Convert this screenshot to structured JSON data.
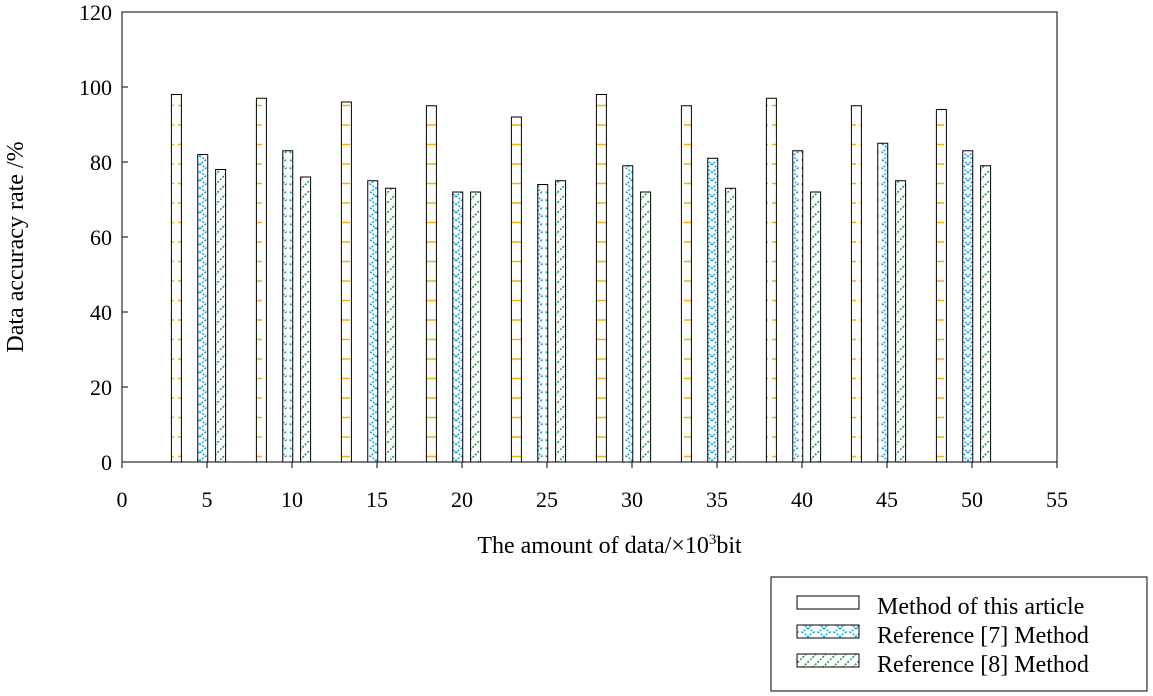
{
  "chart_data": {
    "type": "bar",
    "categories": [
      5,
      10,
      15,
      20,
      25,
      30,
      35,
      40,
      45,
      50
    ],
    "series": [
      {
        "name": "Method of this article",
        "values": [
          98,
          97,
          96,
          95,
          92,
          98,
          95,
          97,
          95,
          94
        ],
        "pattern": "yellow-dashes",
        "color": "#f2b400"
      },
      {
        "name": "Reference [7] Method",
        "values": [
          82,
          83,
          75,
          72,
          74,
          79,
          81,
          83,
          85,
          83
        ],
        "pattern": "blue-zigzag",
        "color": "#1f9fd6"
      },
      {
        "name": "Reference [8] Method",
        "values": [
          78,
          76,
          73,
          72,
          75,
          72,
          73,
          72,
          75,
          79
        ],
        "pattern": "green-diagonal",
        "color": "#1a9a4a"
      }
    ],
    "title": "",
    "xlabel": "The amount of data/×10",
    "xlabel_superscript": "3",
    "xlabel_suffix": "bit",
    "ylabel": "Data accuracy rate /%",
    "xlim": [
      0,
      55
    ],
    "ylim": [
      0,
      120
    ],
    "xticks": [
      0,
      5,
      10,
      15,
      20,
      25,
      30,
      35,
      40,
      45,
      50,
      55
    ],
    "yticks": [
      0,
      20,
      40,
      60,
      80,
      100,
      120
    ],
    "grid": false,
    "legend_position": "bottom-right"
  }
}
